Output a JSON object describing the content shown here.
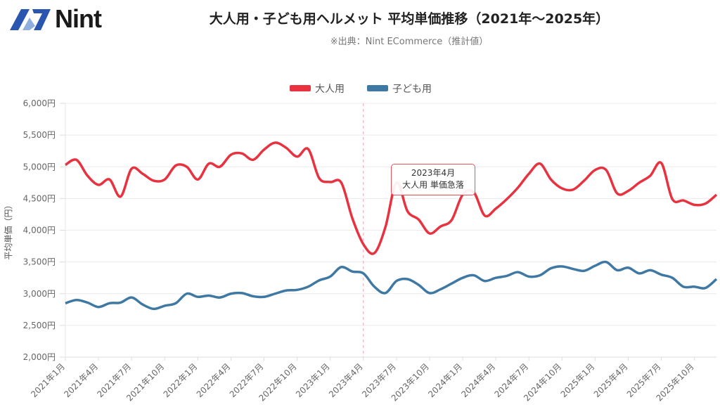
{
  "header": {
    "logo_text": "Nint",
    "title": "大人用・子ども用ヘルメット 平均単価推移（2021年〜2025年）",
    "subtitle": "※出典：Nint ECommerce（推計値）"
  },
  "chart_data": {
    "type": "line",
    "title": "大人用・子ども用ヘルメット 平均単価推移（2021年〜2025年）",
    "xlabel": "",
    "ylabel": "平均単価（円）",
    "ylim": [
      2000,
      6000
    ],
    "yticks": [
      2000,
      2500,
      3000,
      3500,
      4000,
      4500,
      5000,
      5500,
      6000
    ],
    "ytick_labels": [
      "2,000円",
      "2,500円",
      "3,000円",
      "3,500円",
      "4,000円",
      "4,500円",
      "5,000円",
      "5,500円",
      "6,000円"
    ],
    "grid": true,
    "legend_position": "top-center",
    "x_tick_labels": [
      "2021年1月",
      "2021年4月",
      "2021年7月",
      "2021年10月",
      "2022年1月",
      "2022年4月",
      "2022年7月",
      "2022年10月",
      "2023年1月",
      "2023年4月",
      "2023年7月",
      "2023年10月",
      "2024年1月",
      "2024年4月",
      "2024年7月",
      "2024年10月",
      "2025年1月",
      "2025年4月",
      "2025年7月",
      "2025年10月"
    ],
    "x_start": "2021-01",
    "x_count": 60,
    "series": [
      {
        "name": "大人用",
        "color": "#e8323f",
        "values": [
          5030,
          5110,
          4860,
          4715,
          4800,
          4530,
          4970,
          4890,
          4780,
          4800,
          5020,
          5000,
          4800,
          5050,
          5000,
          5190,
          5210,
          5110,
          5270,
          5380,
          5300,
          5160,
          5280,
          4820,
          4760,
          4750,
          4190,
          3780,
          3640,
          4050,
          4750,
          4300,
          4170,
          3950,
          4060,
          4160,
          4560,
          4600,
          4230,
          4340,
          4490,
          4670,
          4890,
          5050,
          4800,
          4660,
          4640,
          4780,
          4950,
          4950,
          4580,
          4620,
          4750,
          4860,
          5060,
          4490,
          4470,
          4400,
          4420,
          4560
        ]
      },
      {
        "name": "子ども用",
        "color": "#3f79a3",
        "values": [
          2850,
          2900,
          2860,
          2790,
          2850,
          2860,
          2940,
          2830,
          2760,
          2810,
          2850,
          3000,
          2950,
          2970,
          2940,
          3000,
          3010,
          2960,
          2950,
          3000,
          3050,
          3060,
          3110,
          3210,
          3270,
          3420,
          3350,
          3320,
          3110,
          3010,
          3200,
          3230,
          3140,
          3010,
          3070,
          3160,
          3250,
          3290,
          3200,
          3250,
          3280,
          3340,
          3270,
          3290,
          3400,
          3430,
          3390,
          3360,
          3440,
          3500,
          3370,
          3410,
          3320,
          3370,
          3300,
          3250,
          3110,
          3110,
          3090,
          3230
        ]
      }
    ],
    "annotation": {
      "index": 27,
      "line1": "2023年4月",
      "line2": "大人用 単価急落"
    }
  }
}
